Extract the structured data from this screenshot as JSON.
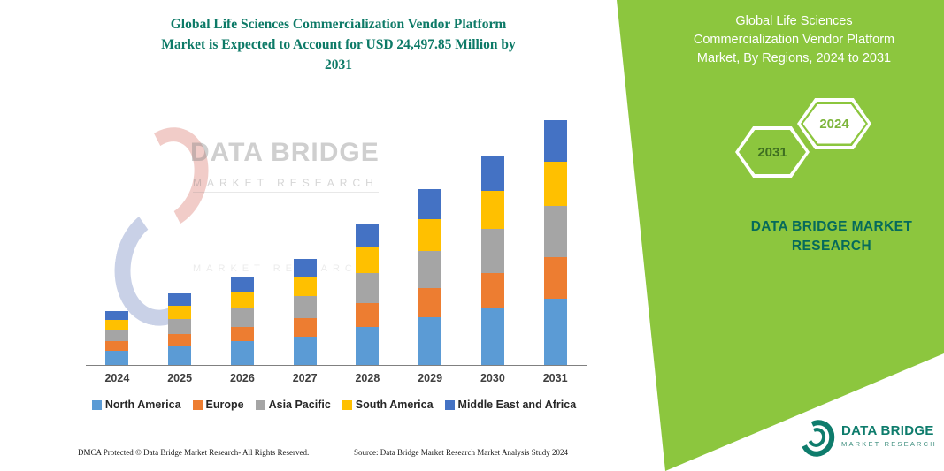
{
  "colors": {
    "panel_green": "#8CC63E",
    "title_teal": "#0D7A67",
    "brand_teal": "#056A5B",
    "logo_teal": "#0E7C6C",
    "axis_gray": "#808080",
    "hex_back_text": "#3E6E21",
    "hex_front_text": "#7DB53B"
  },
  "left": {
    "title_lines": [
      "Global Life Sciences Commercialization Vendor Platform",
      "Market is Expected to Account for USD 24,497.85 Million by",
      "2031"
    ]
  },
  "watermark": {
    "title": "DATA BRIDGE",
    "subtitle": "MARKET RESEARCH",
    "subtitle2": "MARKET RESEARCH"
  },
  "chart_data": {
    "type": "bar",
    "stacked": true,
    "title": "Global Life Sciences Commercialization Vendor Platform Market is Expected to Account for USD 24,497.85 Million by 2031",
    "xlabel": "",
    "ylabel": "",
    "value_unit": "USD Million",
    "y_axis_visible": false,
    "ylim": [
      0,
      25000
    ],
    "legend_position": "bottom",
    "categories": [
      "2024",
      "2025",
      "2026",
      "2027",
      "2028",
      "2029",
      "2030",
      "2031"
    ],
    "series": [
      {
        "name": "North America",
        "color": "#5B9BD5",
        "values": [
          1458,
          1931,
          2363,
          2862,
          3821,
          4752,
          5657,
          6614
        ]
      },
      {
        "name": "Europe",
        "color": "#ED7D31",
        "values": [
          918,
          1216,
          1488,
          1802,
          2406,
          2992,
          3562,
          4165
        ]
      },
      {
        "name": "Asia Pacific",
        "color": "#A5A5A5",
        "values": [
          1134,
          1502,
          1838,
          2226,
          2972,
          3696,
          4400,
          5145
        ]
      },
      {
        "name": "South America",
        "color": "#FFC000",
        "values": [
          972,
          1287,
          1575,
          1908,
          2547,
          3168,
          3771,
          4410
        ]
      },
      {
        "name": "Middle East and Africa",
        "color": "#4472C4",
        "values": [
          918,
          1214,
          1486,
          1802,
          2404,
          2992,
          3560,
          4163.85
        ]
      }
    ],
    "totals": [
      5400,
      7150,
      8750,
      10600,
      14150,
      17600,
      20950,
      24497.85
    ]
  },
  "footer": {
    "left": "DMCA Protected © Data Bridge Market Research-  All Rights Reserved.",
    "source": "Source: Data Bridge Market Research  Market Analysis Study 2024"
  },
  "right_panel": {
    "heading_lines": [
      "Global Life Sciences",
      "Commercialization Vendor Platform",
      "Market, By Regions, 2024 to 2031"
    ],
    "hexagon_back_label": "2031",
    "hexagon_front_label": "2024",
    "brand_lines": [
      "DATA BRIDGE MARKET",
      "RESEARCH"
    ]
  },
  "logo": {
    "name": "DATA BRIDGE",
    "subtitle": "MARKET RESEARCH"
  }
}
